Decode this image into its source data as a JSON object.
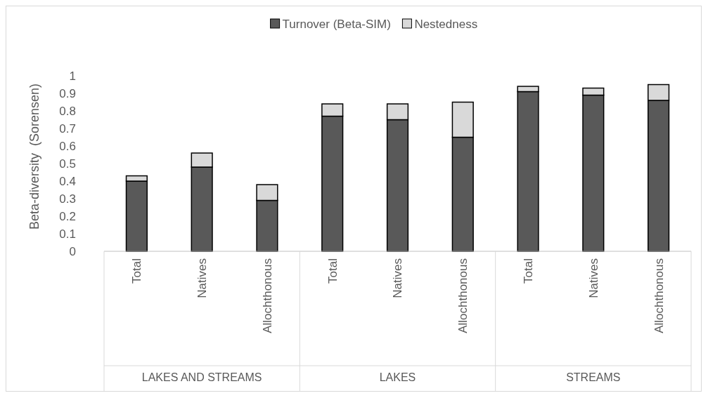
{
  "chart_data": {
    "type": "bar",
    "stacked": true,
    "ylabel": "Beta-diversity  (Sorensen)",
    "categories": [
      "Total",
      "Natives",
      "Allochthonous",
      "Total",
      "Natives",
      "Allochthonous",
      "Total",
      "Natives",
      "Allochthonous"
    ],
    "annotations": [
      "LAKES AND STREAMS",
      "LAKES",
      "STREAMS"
    ],
    "series": [
      {
        "name": "Turnover (Beta-SIM)",
        "color": "#595959",
        "values": [
          0.4,
          0.48,
          0.29,
          0.77,
          0.75,
          0.65,
          0.91,
          0.89,
          0.86
        ]
      },
      {
        "name": "Nestedness",
        "color": "#d9d9d9",
        "values": [
          0.03,
          0.08,
          0.09,
          0.07,
          0.09,
          0.2,
          0.03,
          0.04,
          0.09
        ]
      }
    ],
    "ylim": [
      0,
      1
    ],
    "yticks": [
      0,
      0.1,
      0.2,
      0.3,
      0.4,
      0.5,
      0.6,
      0.7,
      0.8,
      0.9,
      1
    ],
    "grid": false,
    "legend": "top"
  }
}
